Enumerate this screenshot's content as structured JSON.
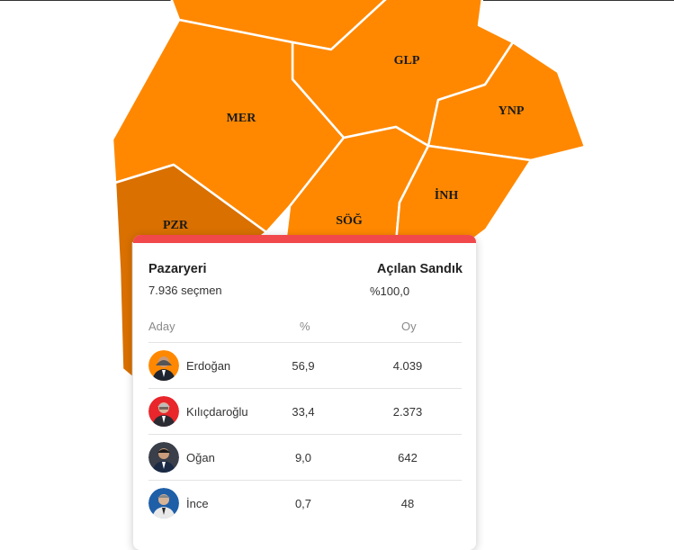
{
  "map": {
    "colors": {
      "leading": "#ff8800",
      "selected": "#d97000",
      "border": "#ffffff"
    },
    "regions": [
      {
        "code": "",
        "name": "top-region"
      },
      {
        "code": "GLP"
      },
      {
        "code": "YNP"
      },
      {
        "code": "MER"
      },
      {
        "code": "SÖĞ"
      },
      {
        "code": "İNH"
      },
      {
        "code": "PZR",
        "selected": true
      }
    ]
  },
  "popup": {
    "accent": "#f1484c",
    "district": "Pazaryeri",
    "voters": "7.936 seçmen",
    "opened_title": "Açılan Sandık",
    "opened_value": "%100,0",
    "headers": {
      "candidate": "Aday",
      "percent": "%",
      "votes": "Oy"
    },
    "candidates": [
      {
        "name": "Erdoğan",
        "percent": "56,9",
        "votes": "4.039",
        "avatar_bg": "#ff8800"
      },
      {
        "name": "Kılıçdaroğlu",
        "percent": "33,4",
        "votes": "2.373",
        "avatar_bg": "#e8262b"
      },
      {
        "name": "Oğan",
        "percent": "9,0",
        "votes": "642",
        "avatar_bg": "#3a3f4a"
      },
      {
        "name": "İnce",
        "percent": "0,7",
        "votes": "48",
        "avatar_bg": "#1f5fa8"
      }
    ]
  }
}
